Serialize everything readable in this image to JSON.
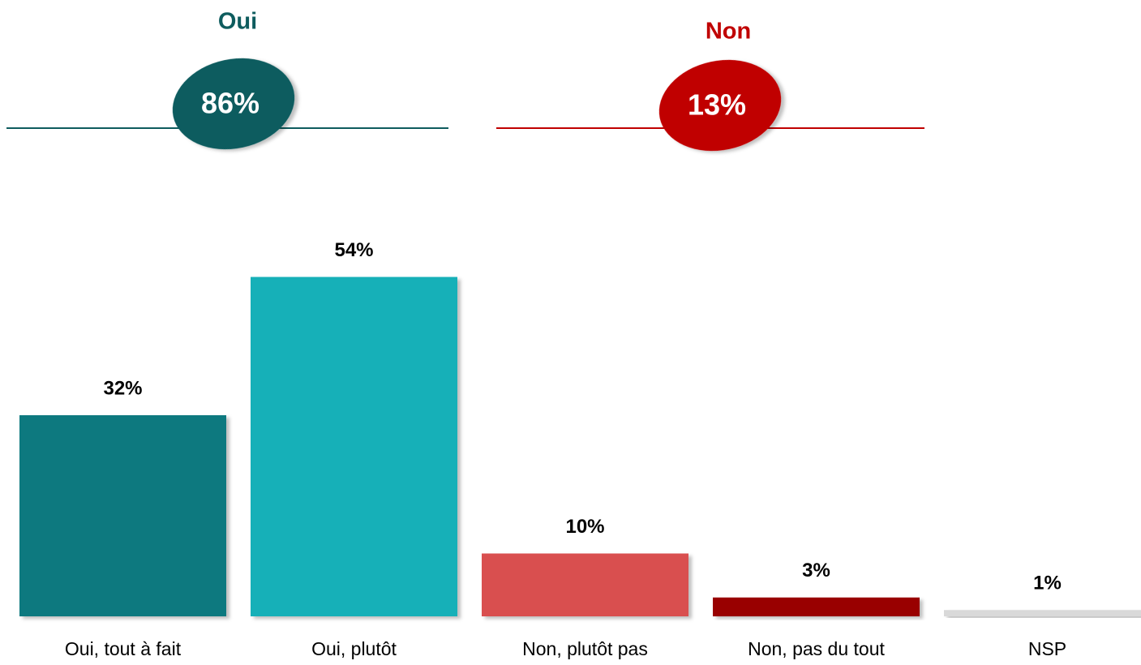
{
  "chart_data": {
    "type": "bar",
    "categories": [
      "Oui, tout à fait",
      "Oui, plutôt",
      "Non, plutôt pas",
      "Non, pas du tout",
      "NSP"
    ],
    "values": [
      32,
      54,
      10,
      3,
      1
    ],
    "value_labels": [
      "32%",
      "54%",
      "10%",
      "3%",
      "1%"
    ],
    "colors": [
      "#10797f",
      "#14b0b8",
      "#d94f50",
      "#990000",
      "#d9d9d9"
    ],
    "summaries": [
      {
        "label": "Oui",
        "value": 86,
        "value_label": "86%",
        "color": "#0e5c5e"
      },
      {
        "label": "Non",
        "value": 13,
        "value_label": "13%",
        "color": "#c00000"
      }
    ]
  }
}
